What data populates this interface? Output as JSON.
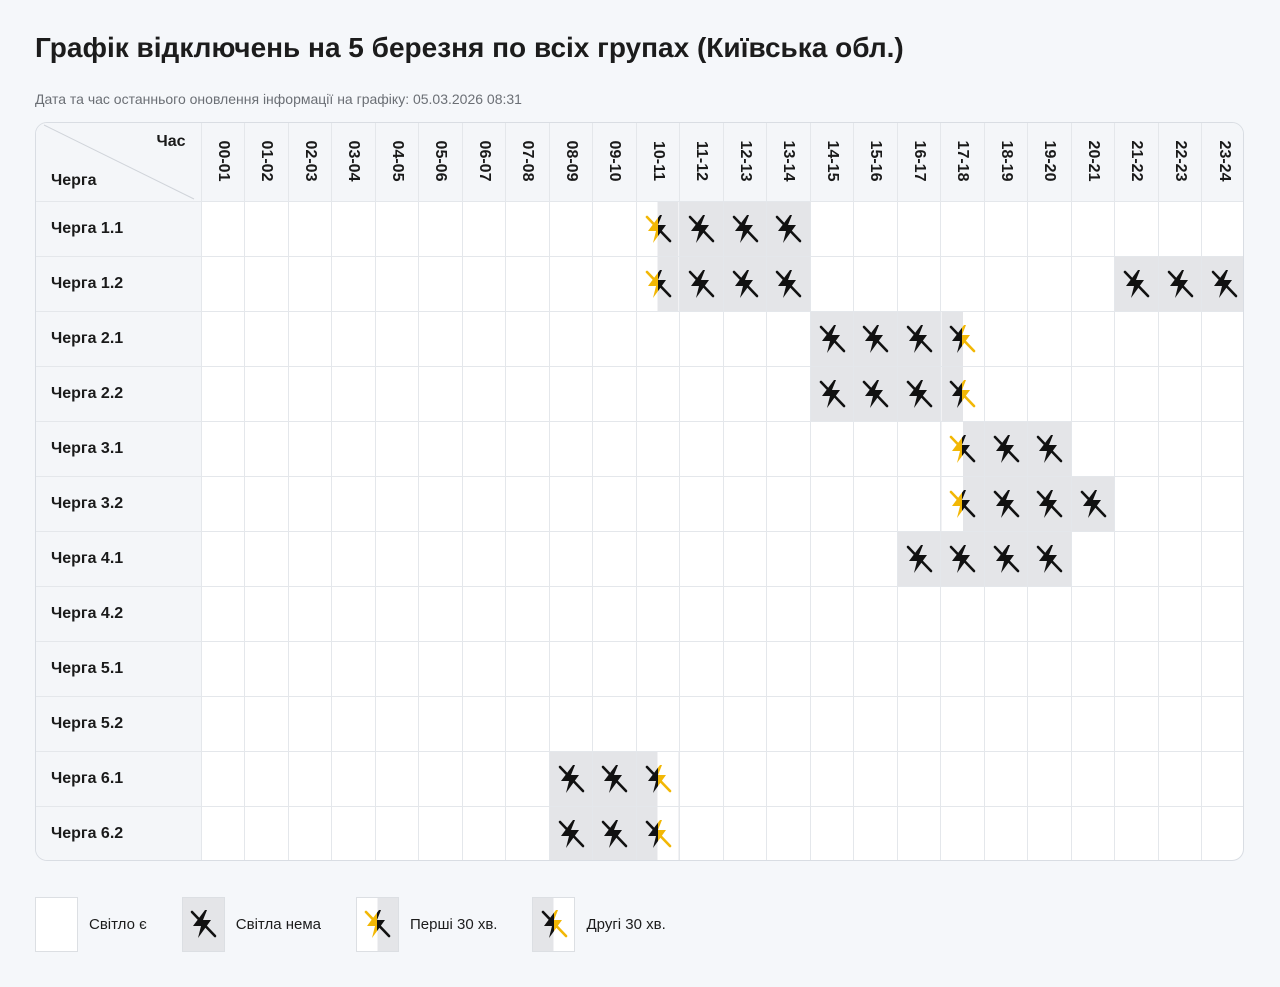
{
  "title": "Графік відключень на 5 березня по всіх групах (Київська обл.)",
  "updated": "Дата та час останнього оновлення інформації на графіку: 05.03.2026 08:31",
  "header": {
    "time_label": "Час",
    "group_label": "Черга"
  },
  "hours": [
    "00-01",
    "01-02",
    "02-03",
    "03-04",
    "04-05",
    "05-06",
    "06-07",
    "07-08",
    "08-09",
    "09-10",
    "10-11",
    "11-12",
    "12-13",
    "13-14",
    "14-15",
    "15-16",
    "16-17",
    "17-18",
    "18-19",
    "19-20",
    "20-21",
    "21-22",
    "22-23",
    "23-24"
  ],
  "groups": [
    {
      "name": "Черга 1.1",
      "slots": [
        "yes",
        "yes",
        "yes",
        "yes",
        "yes",
        "yes",
        "yes",
        "yes",
        "yes",
        "yes",
        "first",
        "no",
        "no",
        "no",
        "yes",
        "yes",
        "yes",
        "yes",
        "yes",
        "yes",
        "yes",
        "yes",
        "yes",
        "yes"
      ]
    },
    {
      "name": "Черга 1.2",
      "slots": [
        "yes",
        "yes",
        "yes",
        "yes",
        "yes",
        "yes",
        "yes",
        "yes",
        "yes",
        "yes",
        "first",
        "no",
        "no",
        "no",
        "yes",
        "yes",
        "yes",
        "yes",
        "yes",
        "yes",
        "yes",
        "no",
        "no",
        "no"
      ]
    },
    {
      "name": "Черга 2.1",
      "slots": [
        "yes",
        "yes",
        "yes",
        "yes",
        "yes",
        "yes",
        "yes",
        "yes",
        "yes",
        "yes",
        "yes",
        "yes",
        "yes",
        "yes",
        "no",
        "no",
        "no",
        "second",
        "yes",
        "yes",
        "yes",
        "yes",
        "yes",
        "yes"
      ]
    },
    {
      "name": "Черга 2.2",
      "slots": [
        "yes",
        "yes",
        "yes",
        "yes",
        "yes",
        "yes",
        "yes",
        "yes",
        "yes",
        "yes",
        "yes",
        "yes",
        "yes",
        "yes",
        "no",
        "no",
        "no",
        "second",
        "yes",
        "yes",
        "yes",
        "yes",
        "yes",
        "yes"
      ]
    },
    {
      "name": "Черга 3.1",
      "slots": [
        "yes",
        "yes",
        "yes",
        "yes",
        "yes",
        "yes",
        "yes",
        "yes",
        "yes",
        "yes",
        "yes",
        "yes",
        "yes",
        "yes",
        "yes",
        "yes",
        "yes",
        "first",
        "no",
        "no",
        "yes",
        "yes",
        "yes",
        "yes"
      ]
    },
    {
      "name": "Черга 3.2",
      "slots": [
        "yes",
        "yes",
        "yes",
        "yes",
        "yes",
        "yes",
        "yes",
        "yes",
        "yes",
        "yes",
        "yes",
        "yes",
        "yes",
        "yes",
        "yes",
        "yes",
        "yes",
        "first",
        "no",
        "no",
        "no",
        "yes",
        "yes",
        "yes"
      ]
    },
    {
      "name": "Черга 4.1",
      "slots": [
        "yes",
        "yes",
        "yes",
        "yes",
        "yes",
        "yes",
        "yes",
        "yes",
        "yes",
        "yes",
        "yes",
        "yes",
        "yes",
        "yes",
        "yes",
        "yes",
        "no",
        "no",
        "no",
        "no",
        "yes",
        "yes",
        "yes",
        "yes"
      ]
    },
    {
      "name": "Черга 4.2",
      "slots": [
        "yes",
        "yes",
        "yes",
        "yes",
        "yes",
        "yes",
        "yes",
        "yes",
        "yes",
        "yes",
        "yes",
        "yes",
        "yes",
        "yes",
        "yes",
        "yes",
        "yes",
        "yes",
        "yes",
        "yes",
        "yes",
        "yes",
        "yes",
        "yes"
      ]
    },
    {
      "name": "Черга 5.1",
      "slots": [
        "yes",
        "yes",
        "yes",
        "yes",
        "yes",
        "yes",
        "yes",
        "yes",
        "yes",
        "yes",
        "yes",
        "yes",
        "yes",
        "yes",
        "yes",
        "yes",
        "yes",
        "yes",
        "yes",
        "yes",
        "yes",
        "yes",
        "yes",
        "yes"
      ]
    },
    {
      "name": "Черга 5.2",
      "slots": [
        "yes",
        "yes",
        "yes",
        "yes",
        "yes",
        "yes",
        "yes",
        "yes",
        "yes",
        "yes",
        "yes",
        "yes",
        "yes",
        "yes",
        "yes",
        "yes",
        "yes",
        "yes",
        "yes",
        "yes",
        "yes",
        "yes",
        "yes",
        "yes"
      ]
    },
    {
      "name": "Черга 6.1",
      "slots": [
        "yes",
        "yes",
        "yes",
        "yes",
        "yes",
        "yes",
        "yes",
        "yes",
        "no",
        "no",
        "second",
        "yes",
        "yes",
        "yes",
        "yes",
        "yes",
        "yes",
        "yes",
        "yes",
        "yes",
        "yes",
        "yes",
        "yes",
        "yes"
      ]
    },
    {
      "name": "Черга 6.2",
      "slots": [
        "yes",
        "yes",
        "yes",
        "yes",
        "yes",
        "yes",
        "yes",
        "yes",
        "no",
        "no",
        "second",
        "yes",
        "yes",
        "yes",
        "yes",
        "yes",
        "yes",
        "yes",
        "yes",
        "yes",
        "yes",
        "yes",
        "yes",
        "yes"
      ]
    }
  ],
  "legend": [
    {
      "type": "yes",
      "label": "Світло є"
    },
    {
      "type": "no",
      "label": "Світла нема"
    },
    {
      "type": "first",
      "label": "Перші 30 хв."
    },
    {
      "type": "second",
      "label": "Другі 30 хв."
    }
  ],
  "colors": {
    "off_bg": "#e4e5e8",
    "bolt_dark": "#111111",
    "bolt_yellow": "#f2b705"
  },
  "icons": {
    "no": "power-off-icon",
    "first": "power-off-first-half-icon",
    "second": "power-off-second-half-icon"
  }
}
